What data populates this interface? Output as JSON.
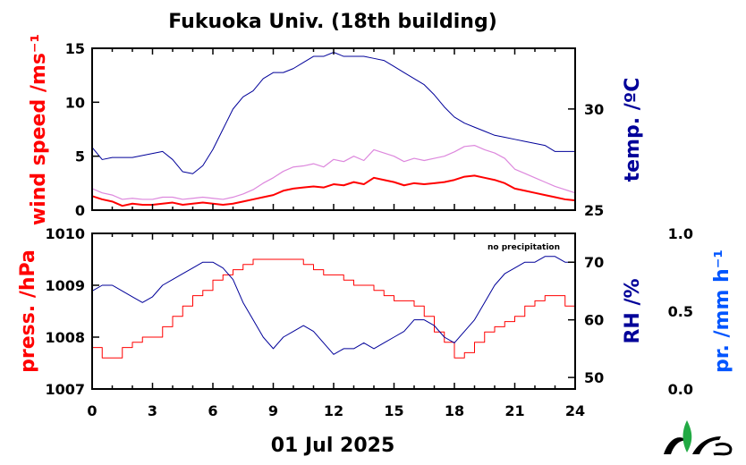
{
  "chart_data": [
    {
      "type": "line",
      "title": "Fukuoka Univ. (18th building)",
      "ylabel_left": "wind speed /ms⁻¹",
      "ylabel_right": "temp. /ºC",
      "x_range": [
        0,
        24
      ],
      "y_left_range": [
        0,
        15
      ],
      "y_right_range": [
        25,
        33
      ],
      "y_left_ticks": [
        "0",
        "5",
        "10",
        "15"
      ],
      "y_right_ticks": [
        "25",
        "30"
      ],
      "colors": {
        "wind": "#ff0000",
        "wind_gust": "#dd88dd",
        "temp": "#000099"
      },
      "series": [
        {
          "axis": "right",
          "x": [
            0,
            0.5,
            1,
            1.5,
            2,
            2.5,
            3,
            3.5,
            4,
            4.5,
            5,
            5.5,
            6,
            6.5,
            7,
            7.5,
            8,
            8.5,
            9,
            9.5,
            10,
            10.5,
            11,
            11.5,
            12,
            12.5,
            13,
            13.5,
            14,
            14.5,
            15,
            15.5,
            16,
            16.5,
            17,
            17.5,
            18,
            18.5,
            19,
            19.5,
            20,
            20.5,
            21,
            21.5,
            22,
            22.5,
            23,
            23.5,
            24
          ],
          "values": [
            28.1,
            27.5,
            27.6,
            27.6,
            27.6,
            27.7,
            27.8,
            27.9,
            27.5,
            26.9,
            26.8,
            27.2,
            28.0,
            29.0,
            30.0,
            30.6,
            30.9,
            31.5,
            31.8,
            31.8,
            32.0,
            32.3,
            32.6,
            32.6,
            32.8,
            32.6,
            32.6,
            32.6,
            32.5,
            32.4,
            32.1,
            31.8,
            31.5,
            31.2,
            30.7,
            30.1,
            29.6,
            29.3,
            29.1,
            28.9,
            28.7,
            28.6,
            28.5,
            28.4,
            28.3,
            28.2,
            27.9,
            27.9,
            27.9
          ]
        },
        {
          "axis": "left",
          "x": [
            0,
            0.5,
            1,
            1.5,
            2,
            2.5,
            3,
            3.5,
            4,
            4.5,
            5,
            5.5,
            6,
            6.5,
            7,
            7.5,
            8,
            8.5,
            9,
            9.5,
            10,
            10.5,
            11,
            11.5,
            12,
            12.5,
            13,
            13.5,
            14,
            14.5,
            15,
            15.5,
            16,
            16.5,
            17,
            17.5,
            18,
            18.5,
            19,
            19.5,
            20,
            20.5,
            21,
            21.5,
            22,
            22.5,
            23,
            23.5,
            24
          ],
          "values": [
            1.3,
            1.0,
            0.8,
            0.4,
            0.6,
            0.5,
            0.5,
            0.6,
            0.7,
            0.5,
            0.6,
            0.7,
            0.6,
            0.5,
            0.6,
            0.8,
            1.0,
            1.2,
            1.4,
            1.8,
            2.0,
            2.1,
            2.2,
            2.1,
            2.4,
            2.3,
            2.6,
            2.4,
            3.0,
            2.8,
            2.6,
            2.3,
            2.5,
            2.4,
            2.5,
            2.6,
            2.8,
            3.1,
            3.2,
            3.0,
            2.8,
            2.5,
            2.0,
            1.8,
            1.6,
            1.4,
            1.2,
            1.0,
            0.9
          ]
        },
        {
          "axis": "left",
          "x": [
            0,
            0.5,
            1,
            1.5,
            2,
            2.5,
            3,
            3.5,
            4,
            4.5,
            5,
            5.5,
            6,
            6.5,
            7,
            7.5,
            8,
            8.5,
            9,
            9.5,
            10,
            10.5,
            11,
            11.5,
            12,
            12.5,
            13,
            13.5,
            14,
            14.5,
            15,
            15.5,
            16,
            16.5,
            17,
            17.5,
            18,
            18.5,
            19,
            19.5,
            20,
            20.5,
            21,
            21.5,
            22,
            22.5,
            23,
            23.5,
            24
          ],
          "values": [
            2.0,
            1.6,
            1.4,
            1.0,
            1.1,
            1.0,
            1.0,
            1.2,
            1.2,
            1.0,
            1.1,
            1.2,
            1.1,
            1.0,
            1.2,
            1.5,
            1.9,
            2.5,
            3.0,
            3.6,
            4.0,
            4.1,
            4.3,
            4.0,
            4.7,
            4.5,
            5.0,
            4.6,
            5.6,
            5.3,
            5.0,
            4.5,
            4.8,
            4.6,
            4.8,
            5.0,
            5.4,
            5.9,
            6.0,
            5.6,
            5.3,
            4.8,
            3.8,
            3.4,
            3.0,
            2.6,
            2.2,
            1.9,
            1.6
          ]
        }
      ]
    },
    {
      "type": "line",
      "ylabel_left": "press. /hPa",
      "ylabel_right": "RH /%",
      "ylabel_far_right": "pr. /mm h⁻¹",
      "x_range": [
        0,
        24
      ],
      "xlabel_ticks": [
        "0",
        "3",
        "6",
        "9",
        "12",
        "15",
        "18",
        "21",
        "24"
      ],
      "y_left_range": [
        1007,
        1010
      ],
      "y_left_ticks": [
        "1007",
        "1008",
        "1009",
        "1010"
      ],
      "y_right_range": [
        48,
        75
      ],
      "y_right_ticks": [
        "50",
        "60",
        "70"
      ],
      "y_far_right_ticks": [
        "0.0",
        "0.5",
        "1.0"
      ],
      "annotation": "no precipitation",
      "date_label": "01 Jul 2025",
      "colors": {
        "press": "#ff0000",
        "rh": "#000099",
        "precip_axis": "#0055ff"
      },
      "series": [
        {
          "axis": "left",
          "x": [
            0,
            0.5,
            1,
            1.5,
            2,
            2.5,
            3,
            3.5,
            4,
            4.5,
            5,
            5.5,
            6,
            6.5,
            7,
            7.5,
            8,
            8.5,
            9,
            9.5,
            10,
            10.5,
            11,
            11.5,
            12,
            12.5,
            13,
            13.5,
            14,
            14.5,
            15,
            15.5,
            16,
            16.5,
            17,
            17.5,
            18,
            18.5,
            19,
            19.5,
            20,
            20.5,
            21,
            21.5,
            22,
            22.5,
            23,
            23.5,
            24
          ],
          "values": [
            1007.8,
            1007.6,
            1007.6,
            1007.8,
            1007.9,
            1008.0,
            1008.0,
            1008.2,
            1008.4,
            1008.6,
            1008.8,
            1008.9,
            1009.1,
            1009.2,
            1009.3,
            1009.4,
            1009.5,
            1009.5,
            1009.5,
            1009.5,
            1009.5,
            1009.4,
            1009.3,
            1009.2,
            1009.2,
            1009.1,
            1009.0,
            1009.0,
            1008.9,
            1008.8,
            1008.7,
            1008.7,
            1008.6,
            1008.4,
            1008.1,
            1007.9,
            1007.6,
            1007.7,
            1007.9,
            1008.1,
            1008.2,
            1008.3,
            1008.4,
            1008.6,
            1008.7,
            1008.8,
            1008.8,
            1008.6,
            1008.3
          ]
        },
        {
          "axis": "right",
          "x": [
            0,
            0.5,
            1,
            1.5,
            2,
            2.5,
            3,
            3.5,
            4,
            4.5,
            5,
            5.5,
            6,
            6.5,
            7,
            7.5,
            8,
            8.5,
            9,
            9.5,
            10,
            10.5,
            11,
            11.5,
            12,
            12.5,
            13,
            13.5,
            14,
            14.5,
            15,
            15.5,
            16,
            16.5,
            17,
            17.5,
            18,
            18.5,
            19,
            19.5,
            20,
            20.5,
            21,
            21.5,
            22,
            22.5,
            23,
            23.5,
            24
          ],
          "values": [
            65,
            66,
            66,
            65,
            64,
            63,
            64,
            66,
            67,
            68,
            69,
            70,
            70,
            69,
            67,
            63,
            60,
            57,
            55,
            57,
            58,
            59,
            58,
            56,
            54,
            55,
            55,
            56,
            55,
            56,
            57,
            58,
            60,
            60,
            59,
            57,
            56,
            58,
            60,
            63,
            66,
            68,
            69,
            70,
            70,
            71,
            71,
            70,
            70
          ]
        }
      ]
    }
  ],
  "logo": {
    "name": "leaf-logo"
  }
}
